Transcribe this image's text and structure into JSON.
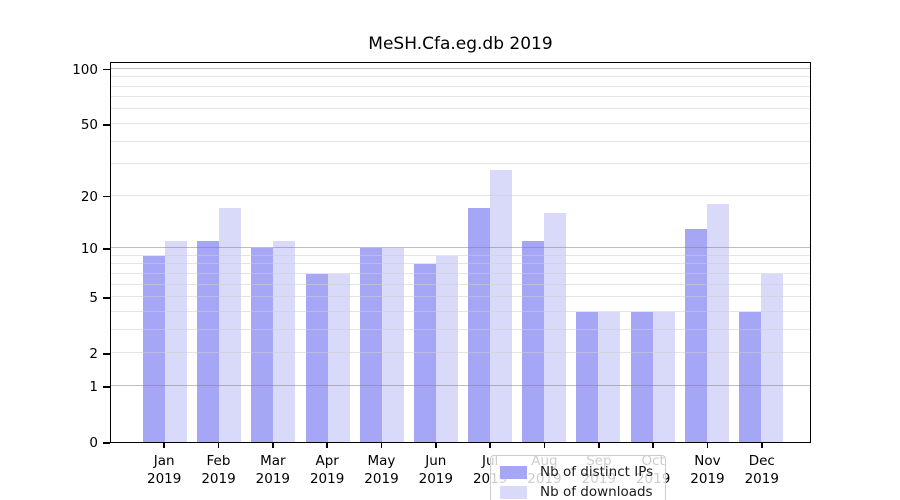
{
  "title": "MeSH.Cfa.eg.db 2019",
  "colors": {
    "distinct_ips": "#a6a6f7",
    "downloads": "#d9d9fa",
    "grid_major": "#bcbcbc",
    "grid_minor": "#e5e5e5",
    "axis": "#000000"
  },
  "chart_data": {
    "type": "bar",
    "title": "MeSH.Cfa.eg.db 2019",
    "categories": [
      "Jan",
      "Feb",
      "Mar",
      "Apr",
      "May",
      "Jun",
      "Jul",
      "Aug",
      "Sep",
      "Oct",
      "Nov",
      "Dec"
    ],
    "year_label": "2019",
    "series": [
      {
        "name": "Nb of distinct IPs",
        "color": "#a6a6f7",
        "values": [
          9,
          11,
          10,
          7,
          10,
          8,
          17,
          11,
          4,
          4,
          13,
          4
        ]
      },
      {
        "name": "Nb of downloads",
        "color": "#d9d9fa",
        "values": [
          11,
          17,
          11,
          7,
          10,
          9,
          28,
          16,
          4,
          4,
          18,
          7
        ]
      }
    ],
    "xlabel": "",
    "ylabel": "",
    "y_scale": "log1p",
    "y_ticks": [
      0,
      1,
      2,
      5,
      10,
      20,
      50,
      100
    ],
    "y_gridlines_major": [
      1,
      10,
      100
    ],
    "y_gridlines_minor": [
      2,
      3,
      4,
      5,
      6,
      7,
      8,
      9,
      20,
      30,
      40,
      50,
      60,
      70,
      80,
      90
    ],
    "y_max": 110,
    "grid": true,
    "legend_position": "lower center"
  }
}
